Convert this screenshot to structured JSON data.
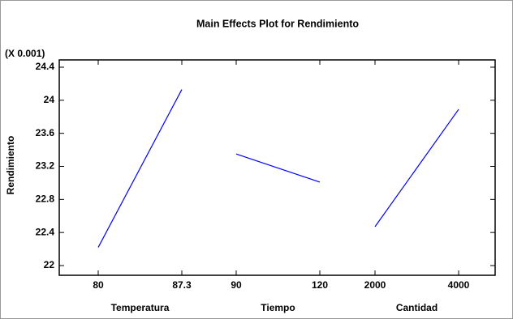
{
  "chart_data": {
    "type": "main_effects",
    "title": "Main Effects Plot for Rendimiento",
    "y_multiplier": "(X 0.001)",
    "ylabel": "Rendimiento",
    "ylim": [
      22,
      24.4
    ],
    "yticks": [
      22,
      22.4,
      22.8,
      23.2,
      23.6,
      24,
      24.4
    ],
    "color": "#0000ff",
    "factors": [
      {
        "name": "Temperatura",
        "levels": [
          "80",
          "87.3"
        ],
        "values": [
          22.22,
          24.13
        ]
      },
      {
        "name": "Tiempo",
        "levels": [
          "90",
          "120"
        ],
        "values": [
          23.35,
          23.01
        ]
      },
      {
        "name": "Cantidad",
        "levels": [
          "2000",
          "4000"
        ],
        "values": [
          22.47,
          23.89
        ]
      }
    ]
  }
}
